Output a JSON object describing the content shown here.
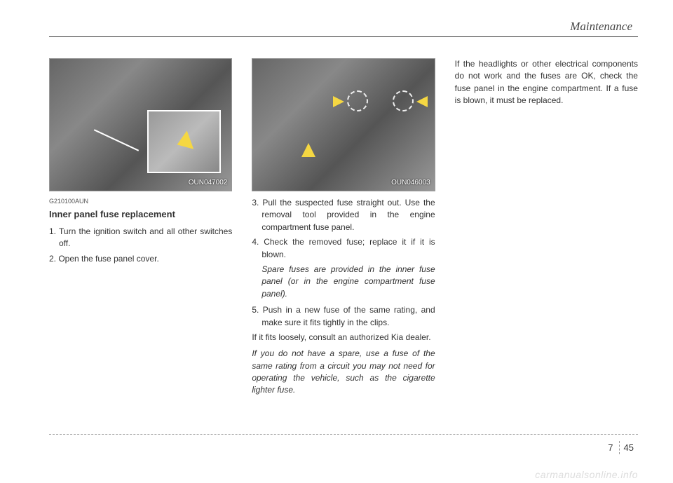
{
  "header": {
    "title": "Maintenance"
  },
  "column1": {
    "figure_caption": "OUN047002",
    "code": "G210100AUN",
    "heading": "Inner panel fuse replacement",
    "step1": "1. Turn the ignition switch and all other switches off.",
    "step2": "2. Open the fuse panel cover."
  },
  "column2": {
    "figure_caption": "OUN046003",
    "step3": "3. Pull the suspected fuse straight out. Use the removal tool provided in the engine compartment fuse panel.",
    "step4": "4. Check the removed fuse; replace it if it is blown.",
    "step4_note": "Spare fuses are provided in the inner fuse panel (or in the engine compart­ment fuse panel).",
    "step5": "5. Push in a new fuse of the same rating, and make sure it fits tightly in the clips.",
    "para1": "If it fits loosely, consult an authorized Kia dealer.",
    "para2": "If you do not have a spare, use a fuse of the same rating from a circuit you may not need for operating the vehicle, such as the cigarette lighter fuse."
  },
  "column3": {
    "para1": "If the headlights or other electrical com­ponents do not work and the fuses are OK, check the fuse panel in the engine compartment. If a fuse is blown, it must be replaced."
  },
  "footer": {
    "page_left": "7",
    "page_right": "45"
  },
  "watermark": "carmanualsonline.info"
}
